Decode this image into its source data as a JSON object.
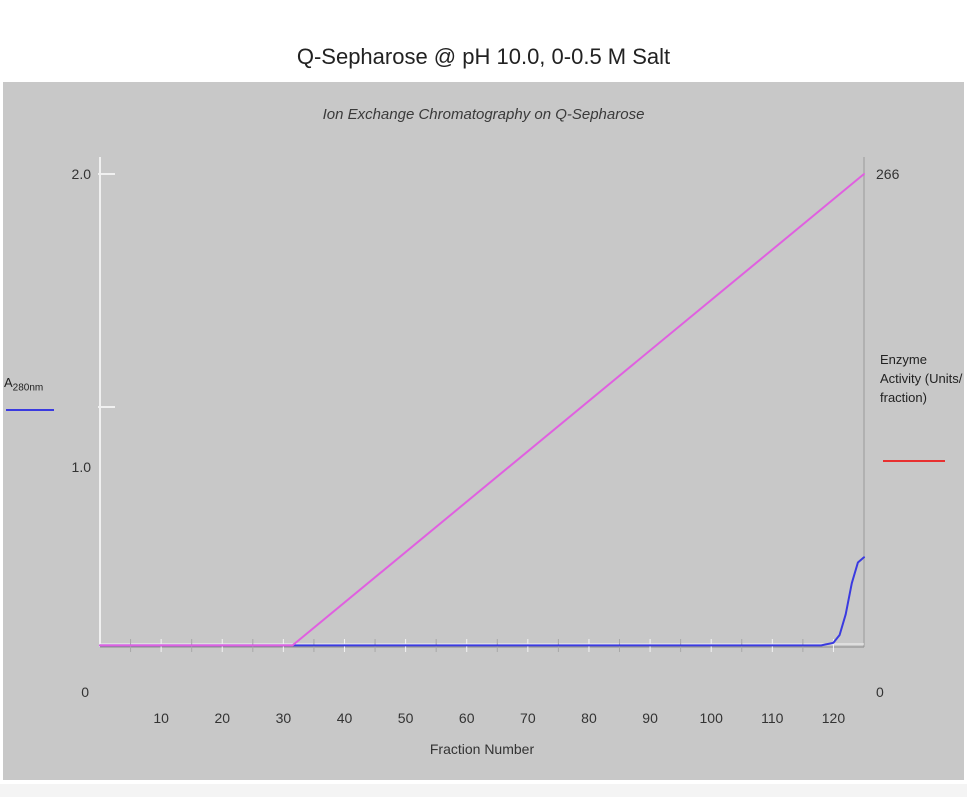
{
  "page": {
    "title": "Q-Sepharose @ pH 10.0, 0-0.5 M Salt"
  },
  "chart_data": {
    "type": "line",
    "subtitle": "Ion Exchange Chromatography on Q-Sepharose",
    "xlabel": "Fraction Number",
    "xlim": [
      0,
      125
    ],
    "x_ticks": [
      10,
      20,
      30,
      40,
      50,
      60,
      70,
      80,
      90,
      100,
      110,
      120
    ],
    "left_axis": {
      "label_main": "A",
      "label_sub": "280nm",
      "ylim": [
        0,
        2.0
      ],
      "tick_labels": [
        "0",
        "1.0",
        "2.0"
      ],
      "tick_values": [
        0,
        1.0,
        2.0
      ]
    },
    "right_axis": {
      "label": "Enzyme Activity (Units/ fraction)",
      "ylim": [
        0,
        266
      ],
      "tick_labels": [
        "0",
        "266"
      ],
      "tick_values": [
        0,
        266
      ]
    },
    "series": [
      {
        "axis": "left",
        "color": "#3a3ae0",
        "x": [
          0,
          110,
          118,
          120,
          121,
          122,
          123,
          124,
          125
        ],
        "y": [
          0.18,
          0.18,
          0.18,
          0.19,
          0.22,
          0.3,
          0.42,
          0.5,
          0.52
        ]
      },
      {
        "axis": "left",
        "color": "#e060e0",
        "x": [
          0,
          31.5,
          125
        ],
        "y": [
          0.18,
          0.18,
          2.0
        ]
      }
    ],
    "enzyme_activity_legend_color": "#e83030",
    "grid": false
  }
}
